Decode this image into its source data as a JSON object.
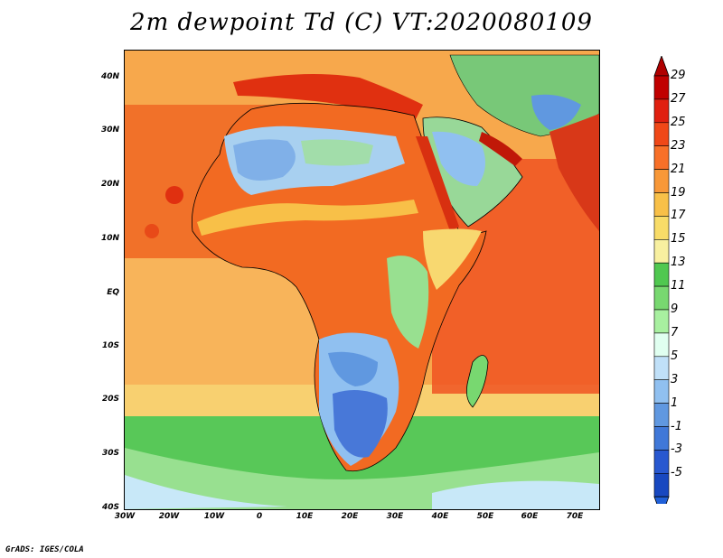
{
  "title": "2m dewpoint Td (C) VT:2020080109",
  "credit": "GrADS: IGES/COLA",
  "y_axis": {
    "tick_labels": [
      "40N",
      "30N",
      "20N",
      "10N",
      "EQ",
      "10S",
      "20S",
      "30S",
      "40S"
    ],
    "latitudes": [
      40,
      30,
      20,
      10,
      0,
      -10,
      -20,
      -30,
      -40
    ]
  },
  "x_axis": {
    "tick_labels": [
      "30W",
      "20W",
      "10W",
      "0",
      "10E",
      "20E",
      "30E",
      "40E",
      "50E",
      "60E",
      "70E"
    ],
    "longitudes": [
      -30,
      -20,
      -10,
      0,
      10,
      20,
      30,
      40,
      50,
      60,
      70
    ]
  },
  "colorbar": {
    "labels": [
      "29",
      "27",
      "25",
      "23",
      "21",
      "19",
      "17",
      "15",
      "13",
      "11",
      "9",
      "7",
      "5",
      "3",
      "1",
      "-1",
      "-3",
      "-5"
    ],
    "colors": [
      "#c00000",
      "#e02010",
      "#f04818",
      "#f87028",
      "#f89838",
      "#f8c048",
      "#f8dc68",
      "#f8f0a0",
      "#50c850",
      "#78d870",
      "#a8f0a0",
      "#e0fff0",
      "#c0e0f8",
      "#90c0f0",
      "#6098e0",
      "#4078d8",
      "#2858d0",
      "#1848c0"
    ],
    "min_color": "#2060d8",
    "max_color": "#b00000"
  },
  "colors": {
    "ocean": "#f6a04a",
    "background": "#ffffff"
  }
}
